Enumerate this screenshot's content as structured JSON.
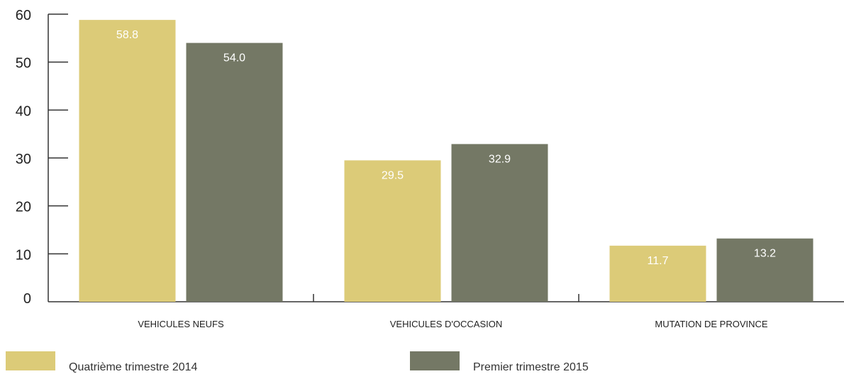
{
  "chart_data": {
    "type": "bar",
    "categories": [
      "VEHICULES NEUFS",
      "VEHICULES D'OCCASION",
      "MUTATION DE PROVINCE"
    ],
    "series": [
      {
        "name": "Quatrième trimestre 2014",
        "values": [
          58.8,
          29.5,
          11.7
        ],
        "color": "#dccb78",
        "value_labels": [
          "58.8",
          "29.5",
          "11.7"
        ]
      },
      {
        "name": "Premier trimestre 2015",
        "values": [
          54.0,
          32.9,
          13.2
        ],
        "color": "#747865",
        "value_labels": [
          "54.0",
          "32.9",
          "13.2"
        ]
      }
    ],
    "yticks": [
      "0",
      "10",
      "20",
      "30",
      "40",
      "50",
      "60"
    ],
    "ylim": [
      0,
      60
    ],
    "grid": false,
    "legend_position": "bottom"
  }
}
